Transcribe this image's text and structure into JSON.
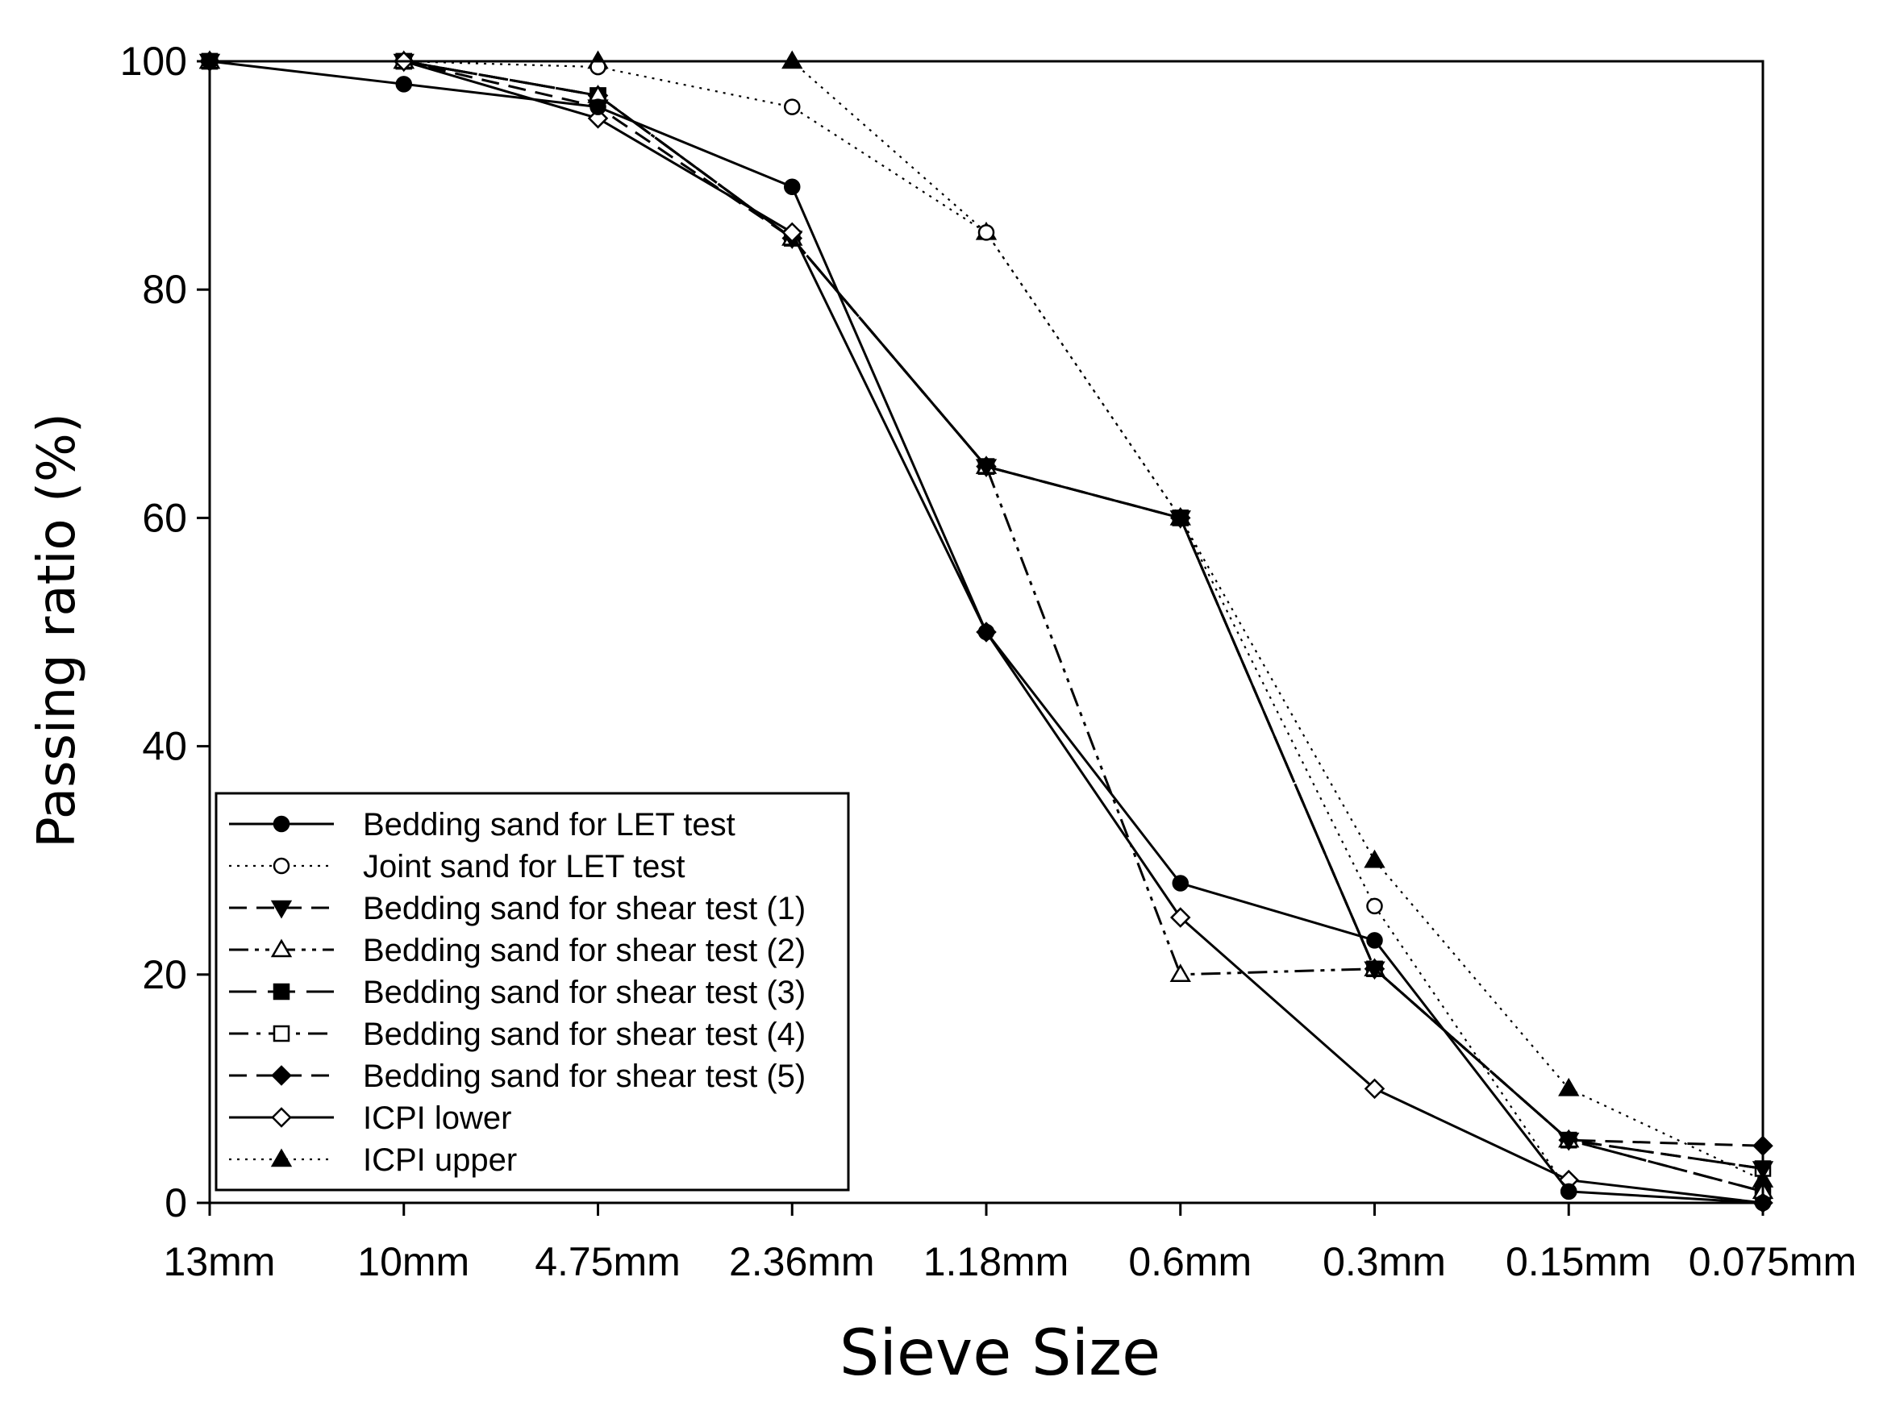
{
  "chart_data": {
    "type": "line",
    "title": "",
    "xlabel": "Sieve Size",
    "ylabel": "Passing ratio (%)",
    "categories": [
      "13mm",
      "10mm",
      "4.75mm",
      "2.36mm",
      "1.18mm",
      "0.6mm",
      "0.3mm",
      "0.15mm",
      "0.075mm"
    ],
    "ylim": [
      0,
      100
    ],
    "yticks": [
      0,
      20,
      40,
      60,
      80,
      100
    ],
    "grid": false,
    "legend_position": "bottom-left",
    "series": [
      {
        "name": "Bedding sand for LET test",
        "line_style": "solid",
        "marker": "circle-filled",
        "color": "#000000",
        "values": [
          100,
          98,
          96,
          89,
          50,
          28,
          23,
          1,
          0
        ]
      },
      {
        "name": "Joint sand for LET test",
        "line_style": "dotted",
        "marker": "circle-open",
        "color": "#000000",
        "values": [
          100,
          100,
          99.5,
          96,
          85,
          60,
          26,
          1,
          0
        ]
      },
      {
        "name": "Bedding sand for shear test (1)",
        "line_style": "dashed",
        "marker": "triangle-down-filled",
        "color": "#000000",
        "values": [
          100,
          100,
          96,
          84.5,
          64.5,
          60,
          20.5,
          5.5,
          3
        ]
      },
      {
        "name": "Bedding sand for shear test (2)",
        "line_style": "dash-dot-dot",
        "marker": "triangle-up-open",
        "color": "#000000",
        "values": [
          100,
          100,
          97,
          84.5,
          64.5,
          20,
          20.5,
          5.5,
          1
        ]
      },
      {
        "name": "Bedding sand for shear test (3)",
        "line_style": "long-dash",
        "marker": "square-filled",
        "color": "#000000",
        "values": [
          100,
          100,
          97,
          84.5,
          64.5,
          60,
          20.5,
          5.5,
          1
        ]
      },
      {
        "name": "Bedding sand for shear test (4)",
        "line_style": "dash-dot",
        "marker": "square-open",
        "color": "#000000",
        "values": [
          100,
          100,
          97,
          84.5,
          64.5,
          60,
          20.5,
          5.5,
          3
        ]
      },
      {
        "name": "Bedding sand for shear test (5)",
        "line_style": "dashed",
        "marker": "diamond-filled",
        "color": "#000000",
        "values": [
          100,
          100,
          97,
          84.5,
          64.5,
          60,
          20.5,
          5.5,
          5
        ]
      },
      {
        "name": "ICPI lower",
        "line_style": "solid",
        "marker": "diamond-open",
        "color": "#000000",
        "values": [
          100,
          100,
          95,
          85,
          50,
          25,
          10,
          2,
          0
        ]
      },
      {
        "name": "ICPI upper",
        "line_style": "dotted",
        "marker": "triangle-up-filled",
        "color": "#000000",
        "values": [
          100,
          100,
          100,
          100,
          85,
          60,
          30,
          10,
          2
        ]
      }
    ]
  }
}
